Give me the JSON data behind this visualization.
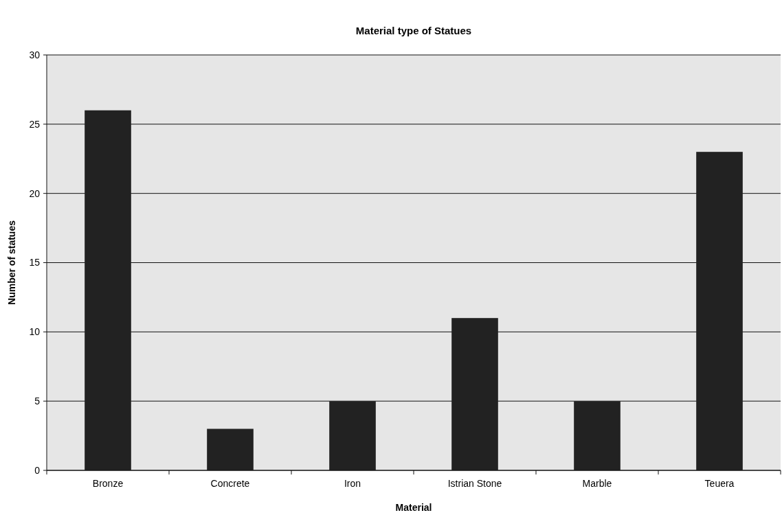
{
  "chart_data": {
    "type": "bar",
    "title": "Material type of Statues",
    "xlabel": "Material",
    "ylabel": "Number of statues",
    "categories": [
      "Bronze",
      "Concrete",
      "Iron",
      "Istrian Stone",
      "Marble",
      "Teuera"
    ],
    "values": [
      26,
      3,
      5,
      11,
      5,
      23
    ],
    "color": "#222222",
    "ylim": [
      0,
      30
    ],
    "yticks": [
      0,
      5,
      10,
      15,
      20,
      25,
      30
    ],
    "grid": "y"
  }
}
